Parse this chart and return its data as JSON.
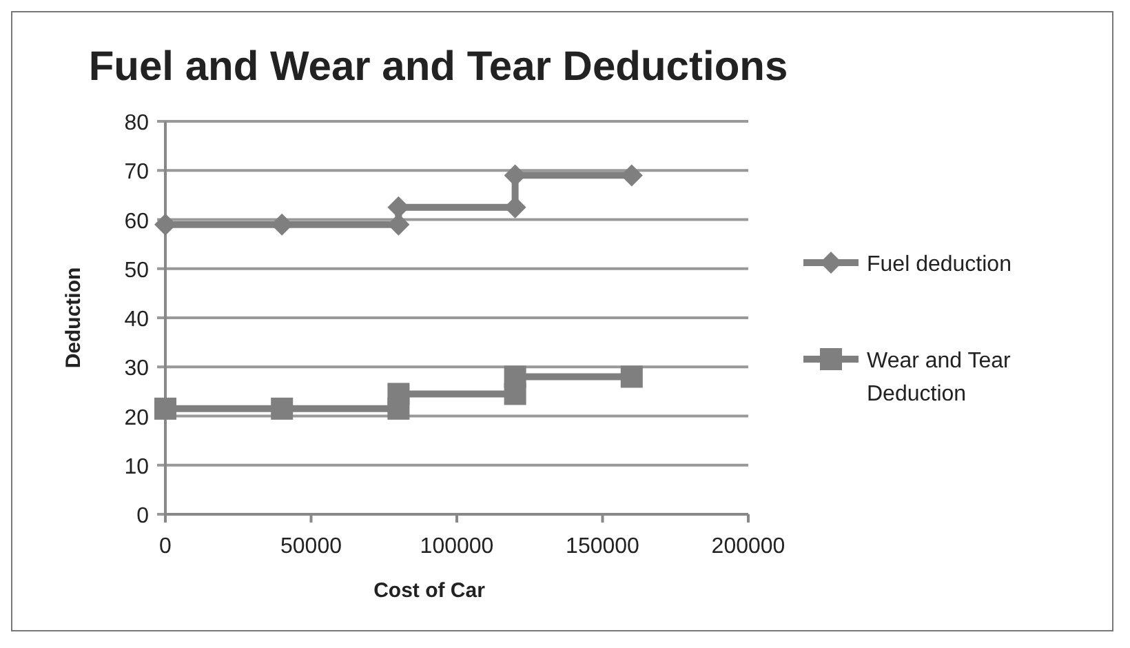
{
  "chart_data": {
    "type": "line",
    "title": "Fuel and Wear and Tear Deductions",
    "xlabel": "Cost of Car",
    "ylabel": "Deduction",
    "xlim": [
      0,
      200000
    ],
    "xticks": [
      0,
      50000,
      100000,
      150000,
      200000
    ],
    "ylim": [
      0,
      80
    ],
    "yticks": [
      0,
      10,
      20,
      30,
      40,
      50,
      60,
      70,
      80
    ],
    "grid": "y",
    "legend": "right",
    "series": [
      {
        "name": "Fuel deduction",
        "color": "#7f7f7f",
        "marker": "diamond",
        "x": [
          0,
          40000,
          80000,
          80000,
          120000,
          120000,
          160000
        ],
        "values": [
          59,
          59,
          59,
          62.5,
          62.5,
          69,
          69
        ]
      },
      {
        "name": "Wear and Tear Deduction",
        "color": "#7f7f7f",
        "marker": "square",
        "x": [
          0,
          40000,
          80000,
          80000,
          120000,
          120000,
          160000
        ],
        "values": [
          21.5,
          21.5,
          21.5,
          24.5,
          24.5,
          28,
          28
        ]
      }
    ]
  }
}
